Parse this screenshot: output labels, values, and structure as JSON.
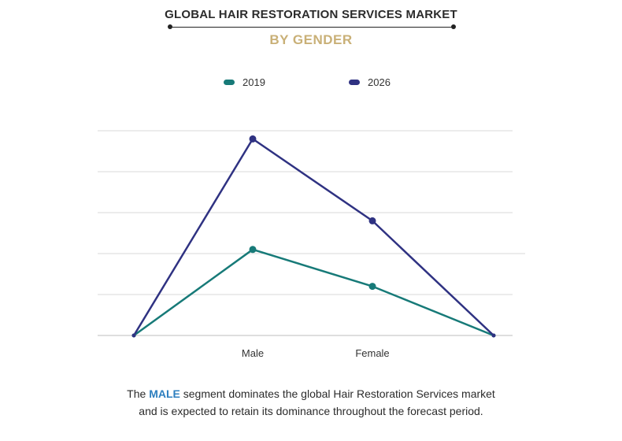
{
  "header": {
    "title": "GLOBAL HAIR RESTORATION SERVICES MARKET",
    "subtitle": "BY GENDER"
  },
  "colors": {
    "series_2019": "#177a78",
    "series_2026": "#2f3282",
    "subtitle": "#c9b077",
    "highlight": "#2e7fbf"
  },
  "chart_data": {
    "type": "line",
    "categories": [
      "",
      "Male",
      "Female",
      ""
    ],
    "series": [
      {
        "name": "2019",
        "values": [
          0,
          21,
          12,
          0
        ]
      },
      {
        "name": "2026",
        "values": [
          0,
          48,
          28,
          0
        ]
      }
    ],
    "ylim": [
      0,
      50
    ],
    "grid": true,
    "legend_position": "top"
  },
  "caption": {
    "prefix": "The ",
    "highlight": "MALE",
    "suffix": " segment dominates the global Hair Restoration Services market",
    "line2": "and is expected to retain its dominance throughout the forecast period."
  }
}
